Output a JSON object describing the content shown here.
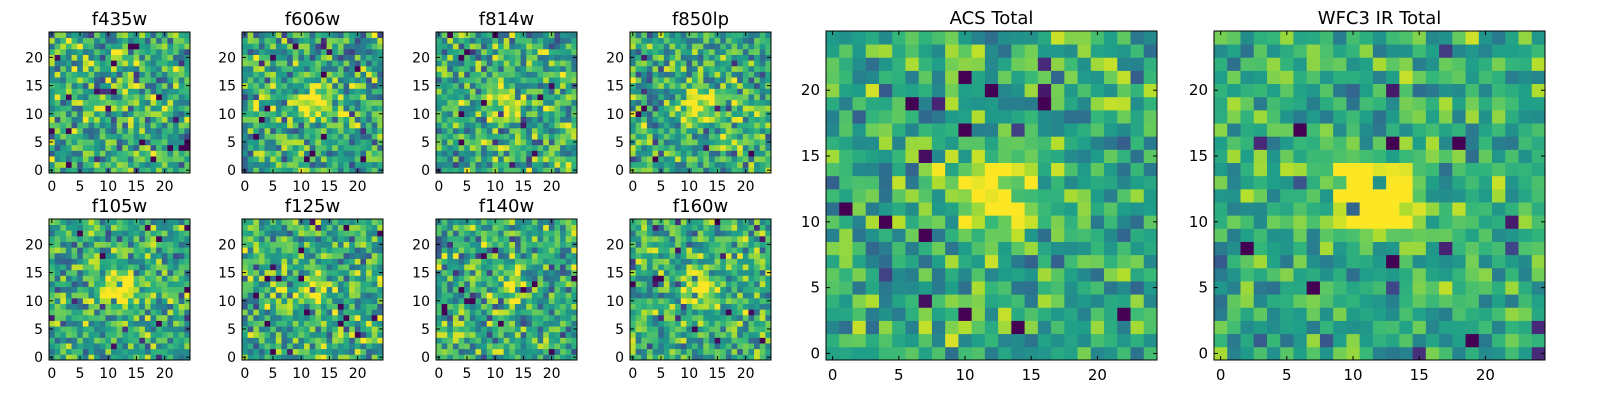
{
  "chart_data": [
    {
      "type": "heatmap",
      "title": "f435w",
      "grid": [
        25,
        25
      ],
      "xlim": [
        0,
        25
      ],
      "ylim": [
        0,
        25
      ],
      "xticks": [
        0,
        5,
        10,
        15,
        20
      ],
      "yticks": [
        0,
        5,
        10,
        15,
        20
      ],
      "colormap": "viridis",
      "seed": 11,
      "noise": 0.55,
      "peak": 0.1
    },
    {
      "type": "heatmap",
      "title": "f606w",
      "grid": [
        25,
        25
      ],
      "xlim": [
        0,
        25
      ],
      "ylim": [
        0,
        25
      ],
      "xticks": [
        0,
        5,
        10,
        15,
        20
      ],
      "yticks": [
        0,
        5,
        10,
        15,
        20
      ],
      "colormap": "viridis",
      "seed": 23,
      "noise": 0.55,
      "peak": 0.45
    },
    {
      "type": "heatmap",
      "title": "f814w",
      "grid": [
        25,
        25
      ],
      "xlim": [
        0,
        25
      ],
      "ylim": [
        0,
        25
      ],
      "xticks": [
        0,
        5,
        10,
        15,
        20
      ],
      "yticks": [
        0,
        5,
        10,
        15,
        20
      ],
      "colormap": "viridis",
      "seed": 37,
      "noise": 0.55,
      "peak": 0.4
    },
    {
      "type": "heatmap",
      "title": "f850lp",
      "grid": [
        25,
        25
      ],
      "xlim": [
        0,
        25
      ],
      "ylim": [
        0,
        25
      ],
      "xticks": [
        0,
        5,
        10,
        15,
        20
      ],
      "yticks": [
        0,
        5,
        10,
        15,
        20
      ],
      "colormap": "viridis",
      "seed": 41,
      "noise": 0.55,
      "peak": 0.5
    },
    {
      "type": "heatmap",
      "title": "f105w",
      "grid": [
        25,
        25
      ],
      "xlim": [
        0,
        25
      ],
      "ylim": [
        0,
        25
      ],
      "xticks": [
        0,
        5,
        10,
        15,
        20
      ],
      "yticks": [
        0,
        5,
        10,
        15,
        20
      ],
      "colormap": "viridis",
      "seed": 53,
      "noise": 0.5,
      "peak": 0.6
    },
    {
      "type": "heatmap",
      "title": "f125w",
      "grid": [
        25,
        25
      ],
      "xlim": [
        0,
        25
      ],
      "ylim": [
        0,
        25
      ],
      "xticks": [
        0,
        5,
        10,
        15,
        20
      ],
      "yticks": [
        0,
        5,
        10,
        15,
        20
      ],
      "colormap": "viridis",
      "seed": 67,
      "noise": 0.55,
      "peak": 0.35
    },
    {
      "type": "heatmap",
      "title": "f140w",
      "grid": [
        25,
        25
      ],
      "xlim": [
        0,
        25
      ],
      "ylim": [
        0,
        25
      ],
      "xticks": [
        0,
        5,
        10,
        15,
        20
      ],
      "yticks": [
        0,
        5,
        10,
        15,
        20
      ],
      "colormap": "viridis",
      "seed": 71,
      "noise": 0.55,
      "peak": 0.3
    },
    {
      "type": "heatmap",
      "title": "f160w",
      "grid": [
        25,
        25
      ],
      "xlim": [
        0,
        25
      ],
      "ylim": [
        0,
        25
      ],
      "xticks": [
        0,
        5,
        10,
        15,
        20
      ],
      "yticks": [
        0,
        5,
        10,
        15,
        20
      ],
      "colormap": "viridis",
      "seed": 83,
      "noise": 0.5,
      "peak": 0.6
    },
    {
      "type": "heatmap",
      "title": "ACS Total",
      "grid": [
        25,
        25
      ],
      "xlim": [
        0,
        25
      ],
      "ylim": [
        0,
        25
      ],
      "xticks": [
        0,
        5,
        10,
        15,
        20
      ],
      "yticks": [
        0,
        5,
        10,
        15,
        20
      ],
      "colormap": "viridis",
      "seed": 97,
      "noise": 0.45,
      "peak": 0.55
    },
    {
      "type": "heatmap",
      "title": "WFC3 IR Total",
      "grid": [
        25,
        25
      ],
      "xlim": [
        0,
        25
      ],
      "ylim": [
        0,
        25
      ],
      "xticks": [
        0,
        5,
        10,
        15,
        20
      ],
      "yticks": [
        0,
        5,
        10,
        15,
        20
      ],
      "colormap": "viridis",
      "seed": 109,
      "noise": 0.4,
      "peak": 0.75
    }
  ]
}
